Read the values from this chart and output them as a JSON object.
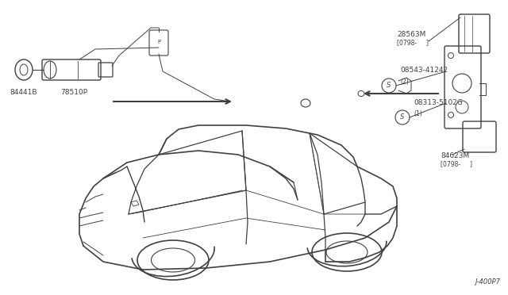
{
  "bg_color": "#ffffff",
  "line_color": "#404040",
  "thin_color": "#555555",
  "diagram_code": "J-400P7",
  "font_size": 6.5,
  "small_font": 5.5,
  "parts": {
    "84441B": "84441B",
    "78510P": "78510P",
    "28563M": "28563M",
    "28563M_sub": "[0798-     ]",
    "08543": "08543-41242",
    "08543_sub": "(2)",
    "08313": "08313-5102G",
    "08313_sub": "(1)",
    "84623M": "84623M",
    "84623M_sub": "[0798-     ]"
  }
}
